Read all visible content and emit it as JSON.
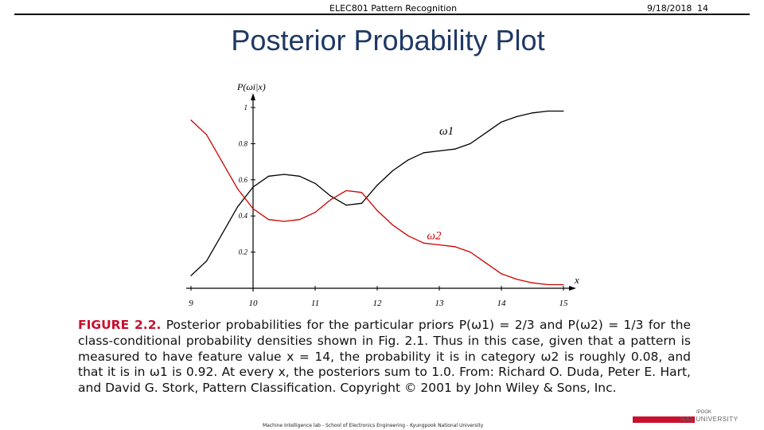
{
  "header": {
    "course": "ELEC801 Pattern Recognition",
    "date": "9/18/2018",
    "page": "14"
  },
  "slide": {
    "title": "Posterior Probability Plot"
  },
  "caption": {
    "lead": "FIGURE 2.2.",
    "text": "Posterior probabilities for the particular priors P(ω1) = 2/3 and P(ω2) = 1/3 for the class-conditional probability densities shown in Fig. 2.1. Thus in this case, given that a pattern is measured to have feature value x = 14, the probability it is in category ω2 is roughly 0.08, and that it is in ω1 is 0.92. At every x, the posteriors sum to 1.0. From: Richard O. Duda, Peter E. Hart, and David G. Stork, Pattern Classification. Copyright © 2001 by John Wiley & Sons, Inc."
  },
  "footer": {
    "text": "Machine Intelligence lab - School of Electronics Engineering - Kyungpook National University"
  },
  "logo": {
    "line1": "IPOOK",
    "line2": "NAL UNIVERSITY",
    "accent_color": "#c8102e"
  },
  "chart_data": {
    "type": "line",
    "ylabel": "P(ωi|x)",
    "xlabel": "x",
    "xlim": [
      9,
      15
    ],
    "ylim": [
      0,
      1
    ],
    "x_ticks": [
      "9",
      "10",
      "11",
      "12",
      "13",
      "14",
      "15"
    ],
    "y_ticks": [
      "0.2",
      "0.4",
      "0.6",
      "0.8",
      "1"
    ],
    "series": [
      {
        "name": "ω1",
        "color": "#000000",
        "x": [
          9,
          9.25,
          9.5,
          9.75,
          10,
          10.25,
          10.5,
          10.75,
          11,
          11.25,
          11.5,
          11.75,
          12,
          12.25,
          12.5,
          12.75,
          13,
          13.25,
          13.5,
          13.75,
          14,
          14.25,
          14.5,
          14.75,
          15
        ],
        "y": [
          0.07,
          0.15,
          0.3,
          0.45,
          0.56,
          0.62,
          0.63,
          0.62,
          0.58,
          0.51,
          0.46,
          0.47,
          0.57,
          0.65,
          0.71,
          0.75,
          0.76,
          0.77,
          0.8,
          0.86,
          0.92,
          0.95,
          0.97,
          0.98,
          0.98
        ]
      },
      {
        "name": "ω2",
        "color": "#cc0000",
        "x": [
          9,
          9.25,
          9.5,
          9.75,
          10,
          10.25,
          10.5,
          10.75,
          11,
          11.25,
          11.5,
          11.75,
          12,
          12.25,
          12.5,
          12.75,
          13,
          13.25,
          13.5,
          13.75,
          14,
          14.25,
          14.5,
          14.75,
          15
        ],
        "y": [
          0.93,
          0.85,
          0.7,
          0.55,
          0.44,
          0.38,
          0.37,
          0.38,
          0.42,
          0.49,
          0.54,
          0.53,
          0.43,
          0.35,
          0.29,
          0.25,
          0.24,
          0.23,
          0.2,
          0.14,
          0.08,
          0.05,
          0.03,
          0.02,
          0.02
        ]
      }
    ],
    "series_labels": [
      {
        "text": "ω1",
        "x": 13,
        "y": 0.85,
        "color": "#000000"
      },
      {
        "text": "ω2",
        "x": 12.8,
        "y": 0.27,
        "color": "#cc0000"
      }
    ]
  }
}
